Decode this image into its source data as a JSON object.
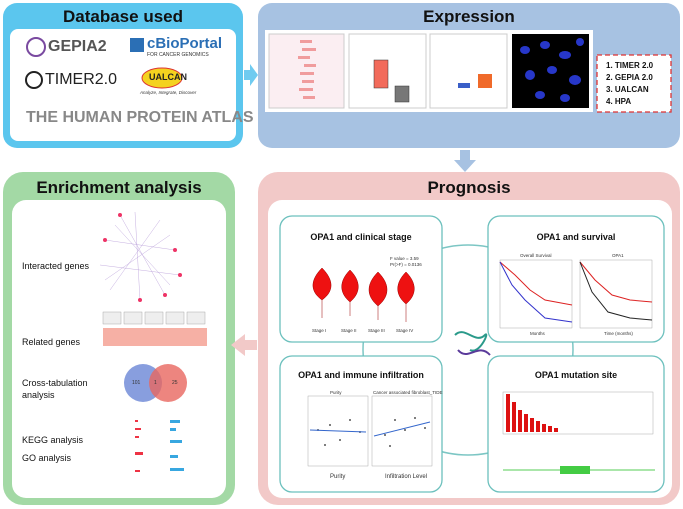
{
  "database": {
    "title": "Database used",
    "logos": [
      "GEPIA2",
      "cBioPortal",
      "FOR CANCER GENOMICS",
      "TIMER2.0",
      "UALCAN",
      "Analyze, Integrate, Discover",
      "THE HUMAN PROTEIN ATLAS"
    ]
  },
  "expression": {
    "title": "Expression",
    "sources": [
      "1. TIMER 2.0",
      "2. GEPIA 2.0",
      "3. UALCAN",
      "4. HPA"
    ]
  },
  "prognosis": {
    "title": "Prognosis",
    "panels": [
      {
        "title": "OPA1 and clinical stage",
        "labels": [
          "Stage I",
          "Stage II",
          "Stage III",
          "Stage IV"
        ],
        "stats": [
          "F value = 3.59",
          "Pr(>F) = 0.0136"
        ]
      },
      {
        "title": "OPA1 and survival",
        "labels": [
          "Overall Survival",
          "Months",
          "OPA1",
          "Time (months)"
        ]
      },
      {
        "title": "OPA1 and immune infiltration",
        "labels": [
          "Purity",
          "Cancer associated fibroblast_TIDE",
          "Infiltration Level"
        ]
      },
      {
        "title": "OPA1 mutation site"
      }
    ]
  },
  "enrichment": {
    "title": "Enrichment analysis",
    "items": [
      "Interacted genes",
      "Related genes",
      "Cross-tabulation analysis",
      "KEGG analysis",
      "GO analysis"
    ],
    "venn": [
      "101",
      "1",
      "25"
    ]
  }
}
